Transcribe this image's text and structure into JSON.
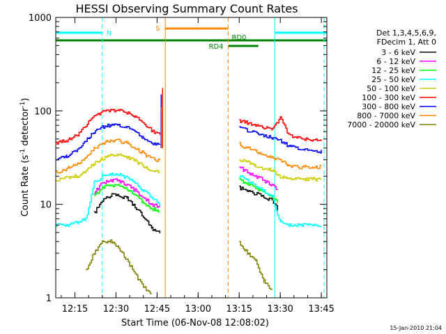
{
  "chart_data": {
    "type": "line",
    "title": "HESSI Observing Summary Count Rates",
    "xlabel": "Start Time (06-Nov-08 12:08:02)",
    "ylabel": "Count Rate (s",
    "ylabel_sup": "-1",
    "ylabel_tail": " detector",
    "ylabel_sup2": "-1",
    "ylabel_close": ")",
    "y_scale": "log",
    "ylim": [
      1,
      1000
    ],
    "xlim": [
      "12:08",
      "13:47"
    ],
    "x_ticks": [
      "12:15",
      "12:30",
      "12:45",
      "13:00",
      "13:15",
      "13:30",
      "13:45"
    ],
    "y_ticks": [
      "1",
      "10",
      "100",
      "1000"
    ],
    "date_stamp": "15-Jan-2010 21:04",
    "legend_header": [
      "Det 1,3,4,5,6,9,",
      "FDecim 1, Att 0"
    ],
    "series": [
      {
        "name": "3 - 6 keV",
        "color": "#000000",
        "x": [
          "12:22",
          "12:25",
          "12:28",
          "12:31",
          "12:34",
          "12:37",
          "12:40",
          "12:43",
          "12:46",
          "13:15",
          "13:18",
          "13:21",
          "13:24",
          "13:27",
          "13:29"
        ],
        "values": [
          8,
          11,
          12.5,
          12.5,
          11.5,
          9.5,
          7.5,
          5.5,
          5,
          15,
          14,
          13,
          12,
          11,
          9
        ]
      },
      {
        "name": "6 - 12 keV",
        "color": "#ff00ff",
        "x": [
          "12:22",
          "12:25",
          "12:28",
          "12:31",
          "12:34",
          "12:37",
          "12:40",
          "12:43",
          "12:46",
          "13:15",
          "13:18",
          "13:21",
          "13:24",
          "13:27",
          "13:29"
        ],
        "values": [
          13,
          17,
          18,
          18,
          16,
          14,
          12,
          10,
          9.5,
          25,
          22,
          20,
          18,
          16,
          14
        ]
      },
      {
        "name": "12 - 25 keV",
        "color": "#00ff00",
        "x": [
          "12:22",
          "12:25",
          "12:28",
          "12:31",
          "12:34",
          "12:37",
          "12:40",
          "12:43",
          "12:46",
          "13:15",
          "13:18",
          "13:21",
          "13:24",
          "13:27",
          "13:29"
        ],
        "values": [
          12,
          15,
          16,
          16,
          14.5,
          12.5,
          10.5,
          9,
          8.5,
          18,
          16.5,
          15,
          13.5,
          12,
          10.5
        ]
      },
      {
        "name": "25 - 50 keV",
        "color": "#00ffff",
        "x": [
          "12:08",
          "12:12",
          "12:16",
          "12:19",
          "12:22",
          "12:25",
          "12:28",
          "12:31",
          "12:34",
          "12:37",
          "12:40",
          "12:43",
          "12:46",
          "13:15",
          "13:18",
          "13:21",
          "13:24",
          "13:27",
          "13:30",
          "13:33",
          "13:36",
          "13:39",
          "13:42",
          "13:45"
        ],
        "values": [
          6,
          6,
          6.5,
          7,
          17,
          20,
          21,
          21,
          19,
          17,
          14,
          12,
          10,
          20,
          18,
          16,
          14,
          12,
          6.5,
          6,
          6,
          6,
          6,
          6
        ]
      },
      {
        "name": "50 - 100 keV",
        "color": "#cccc00",
        "x": [
          "12:08",
          "12:12",
          "12:16",
          "12:19",
          "12:22",
          "12:25",
          "12:28",
          "12:31",
          "12:34",
          "12:37",
          "12:40",
          "12:43",
          "12:46",
          "13:15",
          "13:18",
          "13:21",
          "13:24",
          "13:27",
          "13:30",
          "13:33",
          "13:36",
          "13:39",
          "13:42",
          "13:45"
        ],
        "values": [
          18,
          19,
          20,
          23,
          27,
          31,
          34,
          34,
          32,
          29,
          26,
          23,
          22,
          30,
          28,
          26,
          24,
          23,
          20,
          19,
          19,
          18.5,
          18.5,
          18.5
        ]
      },
      {
        "name": "100 - 300 keV",
        "color": "#ff0000",
        "x": [
          "12:08",
          "12:12",
          "12:16",
          "12:19",
          "12:22",
          "12:25",
          "12:28",
          "12:31",
          "12:34",
          "12:37",
          "12:40",
          "12:43",
          "12:46",
          "13:15",
          "13:18",
          "13:21",
          "13:24",
          "13:27",
          "13:30",
          "13:33",
          "13:36",
          "13:39",
          "13:42",
          "13:45"
        ],
        "values": [
          45,
          48,
          55,
          70,
          88,
          98,
          102,
          102,
          96,
          86,
          74,
          62,
          56,
          78,
          74,
          70,
          66,
          64,
          85,
          56,
          52,
          50,
          48,
          48
        ]
      },
      {
        "name": "300 - 800 keV",
        "color": "#0000ff",
        "x": [
          "12:08",
          "12:12",
          "12:16",
          "12:19",
          "12:22",
          "12:25",
          "12:28",
          "12:31",
          "12:34",
          "12:37",
          "12:40",
          "12:43",
          "12:46",
          "13:15",
          "13:18",
          "13:21",
          "13:24",
          "13:27",
          "13:30",
          "13:33",
          "13:36",
          "13:39",
          "13:42",
          "13:45"
        ],
        "values": [
          30,
          33,
          38,
          48,
          60,
          67,
          70,
          70,
          66,
          60,
          52,
          46,
          42,
          68,
          62,
          58,
          54,
          52,
          48,
          42,
          40,
          38,
          37,
          37
        ]
      },
      {
        "name": "800 - 7000 keV",
        "color": "#ff8800",
        "x": [
          "12:08",
          "12:12",
          "12:16",
          "12:19",
          "12:22",
          "12:25",
          "12:28",
          "12:31",
          "12:34",
          "12:37",
          "12:40",
          "12:43",
          "12:46",
          "13:15",
          "13:18",
          "13:21",
          "13:24",
          "13:27",
          "13:30",
          "13:33",
          "13:36",
          "13:39",
          "13:42",
          "13:45"
        ],
        "values": [
          22,
          24,
          27,
          32,
          40,
          45,
          48,
          48,
          45,
          40,
          35,
          31,
          29,
          44,
          40,
          37,
          34,
          32,
          30,
          26,
          25,
          25,
          25,
          25
        ]
      },
      {
        "name": "7000 - 20000 keV",
        "color": "#808000",
        "x": [
          "12:19",
          "12:22",
          "12:25",
          "12:28",
          "12:31",
          "12:34",
          "12:37",
          "12:40",
          "12:43",
          "13:15",
          "13:18",
          "13:21",
          "13:24",
          "13:27"
        ],
        "values": [
          2,
          3,
          4,
          4,
          3.5,
          2.5,
          1.8,
          1.3,
          1.1,
          4,
          3,
          2.5,
          1.5,
          1.2
        ]
      }
    ],
    "spikes": [
      {
        "series": "100 - 300 keV",
        "x": "12:47",
        "value": 175,
        "color": "#ff0000"
      },
      {
        "series": "300 - 800 keV",
        "x": "12:46:30",
        "value": 150,
        "color": "#0000ff"
      },
      {
        "series": "800 - 7000 keV",
        "x": "12:46:45",
        "value": 110,
        "color": "#ff8800"
      }
    ],
    "flags": [
      {
        "label": "N",
        "color": "#00ffff",
        "x_start": "12:08",
        "x_end": "12:25"
      },
      {
        "label": "",
        "color": "#00ffff",
        "x_start": "13:28",
        "x_end": "13:47"
      },
      {
        "label": "S",
        "color": "#ff8800",
        "x_start": "12:48",
        "x_end": "13:11"
      },
      {
        "label": "RD0",
        "color": "#008000",
        "x_start": "12:08",
        "x_end": "13:47"
      },
      {
        "label": "RD4",
        "color": "#008000",
        "x_start": "13:11",
        "x_end": "13:22"
      }
    ],
    "markers": [
      {
        "color": "#00ffff",
        "x": "12:25",
        "style": "dashed"
      },
      {
        "color": "#00ffff",
        "x": "13:28",
        "style": "solid"
      },
      {
        "color": "#00ffff",
        "x": "13:46",
        "style": "dashed"
      },
      {
        "color": "#ff8800",
        "x": "12:48",
        "style": "solid"
      },
      {
        "color": "#ff8800",
        "x": "13:11",
        "style": "dashed"
      }
    ]
  }
}
